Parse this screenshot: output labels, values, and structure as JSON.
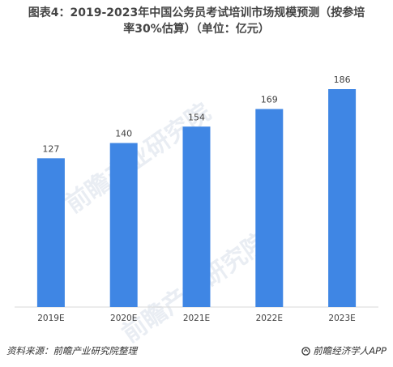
{
  "title_line1": "图表4：2019-2023年中国公务员考试培训市场规模预测（按参培",
  "title_line2": "率30%估算）（单位：亿元）",
  "watermark": "前瞻产业研究院",
  "footer": {
    "source": "资料来源：前瞻产业研究院整理",
    "brand": "前瞻经济学人APP"
  },
  "colors": {
    "bar": "#3f86e4",
    "axis": "#d9d9d9",
    "label": "#404040"
  },
  "chart_data": {
    "type": "bar",
    "categories": [
      "2019E",
      "2020E",
      "2021E",
      "2022E",
      "2023E"
    ],
    "values": [
      127,
      140,
      154,
      169,
      186
    ],
    "title": "图表4：2019-2023年中国公务员考试培训市场规模预测（按参培率30%估算）（单位：亿元）",
    "xlabel": "",
    "ylabel": "",
    "ylim": [
      0,
      195
    ],
    "grid": false,
    "data_labels": true
  }
}
